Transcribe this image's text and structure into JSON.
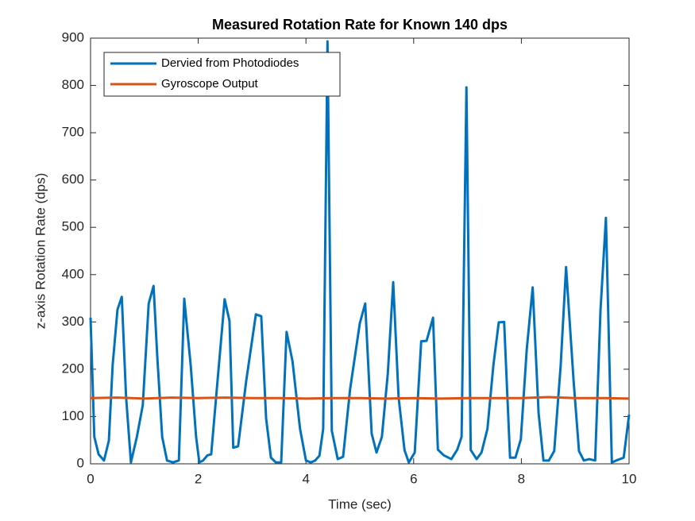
{
  "chart_data": {
    "type": "line",
    "title": "Measured Rotation Rate for Known 140 dps",
    "x_label": "Time (sec)",
    "y_label": "z-axis Rotation Rate (dps)",
    "xlim": [
      0,
      10
    ],
    "ylim": [
      0,
      900
    ],
    "xticks": [
      0,
      2,
      4,
      6,
      8,
      10
    ],
    "yticks": [
      0,
      100,
      200,
      300,
      400,
      500,
      600,
      700,
      800,
      900
    ],
    "grid": false,
    "legend_position": "upper-left",
    "series": [
      {
        "name": "Dervied from Photodiodes",
        "color": "#0072BD",
        "x": [
          0,
          0.07,
          0.15,
          0.25,
          0.34,
          0.41,
          0.5,
          0.58,
          0.66,
          0.75,
          0.86,
          0.97,
          1.08,
          1.17,
          1.24,
          1.33,
          1.42,
          1.53,
          1.64,
          1.74,
          1.86,
          1.96,
          2.02,
          2.09,
          2.17,
          2.24,
          2.37,
          2.49,
          2.58,
          2.65,
          2.74,
          2.89,
          3.07,
          3.17,
          3.26,
          3.35,
          3.44,
          3.54,
          3.64,
          3.75,
          3.89,
          4.0,
          4.09,
          4.17,
          4.25,
          4.32,
          4.4,
          4.48,
          4.59,
          4.69,
          4.82,
          5.0,
          5.1,
          5.22,
          5.31,
          5.41,
          5.52,
          5.62,
          5.72,
          5.83,
          5.91,
          6.02,
          6.14,
          6.24,
          6.36,
          6.45,
          6.56,
          6.7,
          6.81,
          6.89,
          6.98,
          7.06,
          7.17,
          7.26,
          7.37,
          7.48,
          7.58,
          7.68,
          7.79,
          7.89,
          7.99,
          8.1,
          8.21,
          8.32,
          8.41,
          8.51,
          8.61,
          8.73,
          8.83,
          8.97,
          9.07,
          9.16,
          9.26,
          9.37,
          9.47,
          9.57,
          9.68,
          9.76,
          9.9,
          10
        ],
        "values": [
          309,
          57,
          20,
          7,
          49,
          208,
          326,
          353,
          141,
          3,
          57,
          124,
          339,
          376,
          225,
          57,
          7,
          3,
          7,
          349,
          208,
          57,
          3,
          7,
          18,
          20,
          191,
          348,
          302,
          34,
          37,
          175,
          316,
          312,
          96,
          13,
          3,
          3,
          279,
          217,
          74,
          7,
          3,
          7,
          17,
          74,
          893,
          70,
          10,
          15,
          158,
          297,
          339,
          64,
          24,
          57,
          191,
          384,
          141,
          29,
          3,
          24,
          259,
          260,
          309,
          30,
          18,
          10,
          30,
          57,
          796,
          29,
          10,
          24,
          74,
          208,
          299,
          300,
          13,
          13,
          52,
          242,
          373,
          107,
          7,
          7,
          27,
          208,
          416,
          175,
          27,
          7,
          10,
          7,
          326,
          520,
          3,
          7,
          13,
          104
        ]
      },
      {
        "name": "Gyroscope Output",
        "color": "#D95319",
        "x": [
          0,
          0.5,
          1,
          1.5,
          2,
          2.5,
          3,
          3.5,
          4,
          4.5,
          5,
          5.5,
          6,
          6.5,
          7,
          7.5,
          8,
          8.5,
          9,
          9.5,
          10
        ],
        "values": [
          139,
          140,
          138,
          140,
          139,
          140,
          139,
          139,
          138,
          139,
          139,
          138,
          139,
          138,
          139,
          139,
          139,
          141,
          139,
          139,
          138
        ]
      }
    ]
  }
}
